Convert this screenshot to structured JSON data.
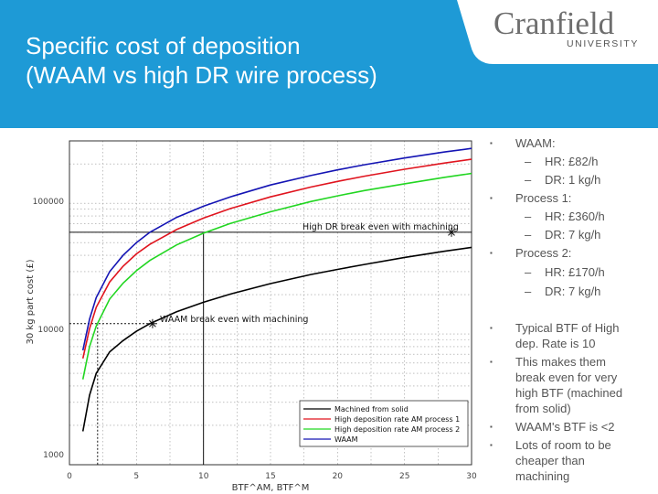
{
  "slide": {
    "title_line1": "Specific cost of deposition",
    "title_line2": "(WAAM vs high DR wire process)",
    "logo_name": "Cranfield",
    "logo_sub": "UNIVERSITY"
  },
  "bullets": {
    "waam": "WAAM:",
    "waam_hr": "HR: £82/h",
    "waam_dr": "DR: 1 kg/h",
    "p1": "Process 1:",
    "p1_hr": "HR: £360/h",
    "p1_dr": "DR: 7 kg/h",
    "p2": "Process 2:",
    "p2_hr": "HR: £170/h",
    "p2_dr": "DR: 7 kg/h",
    "typ_1": "Typical BTF of High",
    "typ_2": "dep. Rate is 10",
    "makes_1": "This makes them",
    "makes_2": "break even for very",
    "makes_3": "high BTF (machined",
    "makes_4": "from solid)",
    "waam_btf": "WAAM's BTF is <2",
    "room_1": "Lots of room to be",
    "room_2": "cheaper than",
    "room_3": "machining"
  },
  "chart_data": {
    "type": "line",
    "xlabel": "BTF^AM, BTF^M",
    "ylabel": "30 kg part cost (£)",
    "xlim": [
      0,
      30
    ],
    "ylim": [
      1000,
      300000
    ],
    "yscale": "log",
    "xticks": [
      "0",
      "5",
      "10",
      "15",
      "20",
      "25",
      "30"
    ],
    "yticks": [
      "1000",
      "10000",
      "100000"
    ],
    "grid": true,
    "legend_position": "bottom-right",
    "series": [
      {
        "name": "Machined from solid",
        "color": "#000000",
        "x": [
          1,
          1.5,
          2,
          3,
          4,
          5,
          6,
          8,
          10,
          12,
          15,
          18,
          20,
          22,
          25,
          28,
          30
        ],
        "y": [
          1800,
          3400,
          5000,
          7300,
          8900,
          10500,
          12000,
          14800,
          17500,
          20200,
          24300,
          28500,
          31200,
          34000,
          38500,
          43000,
          46000
        ]
      },
      {
        "name": "High deposition rate AM process 1",
        "color": "#e0141e",
        "x": [
          1,
          1.5,
          2,
          3,
          4,
          5,
          6,
          8,
          10,
          12,
          15,
          18,
          20,
          22,
          25,
          28,
          30
        ],
        "y": [
          6500,
          11000,
          16000,
          25000,
          33000,
          41000,
          48500,
          63000,
          77000,
          91000,
          112000,
          133000,
          147000,
          161000,
          182000,
          203000,
          217000
        ]
      },
      {
        "name": "High deposition rate AM process 2",
        "color": "#22d622",
        "x": [
          1,
          1.5,
          2,
          3,
          4,
          5,
          6,
          8,
          10,
          12,
          15,
          18,
          20,
          22,
          25,
          28,
          30
        ],
        "y": [
          4500,
          8000,
          11500,
          18500,
          24500,
          30500,
          36500,
          48000,
          59000,
          70000,
          86000,
          103000,
          114000,
          125000,
          141000,
          158000,
          169000
        ]
      },
      {
        "name": "WAAM",
        "color": "#1414b4",
        "x": [
          1,
          1.5,
          2,
          3,
          4,
          5,
          6,
          8,
          10,
          12,
          15,
          18,
          20,
          22,
          25,
          28,
          30
        ],
        "y": [
          7500,
          13000,
          19000,
          30000,
          40000,
          50000,
          60000,
          78000,
          95000,
          112000,
          138000,
          163000,
          180000,
          197000,
          222000,
          247000,
          263000
        ]
      }
    ],
    "annotations": [
      {
        "text": "High DR break even with machining",
        "x": 28.5,
        "y": 60000
      },
      {
        "text": "WAAM break even with machining",
        "x": 6.2,
        "y": 12000
      }
    ]
  }
}
